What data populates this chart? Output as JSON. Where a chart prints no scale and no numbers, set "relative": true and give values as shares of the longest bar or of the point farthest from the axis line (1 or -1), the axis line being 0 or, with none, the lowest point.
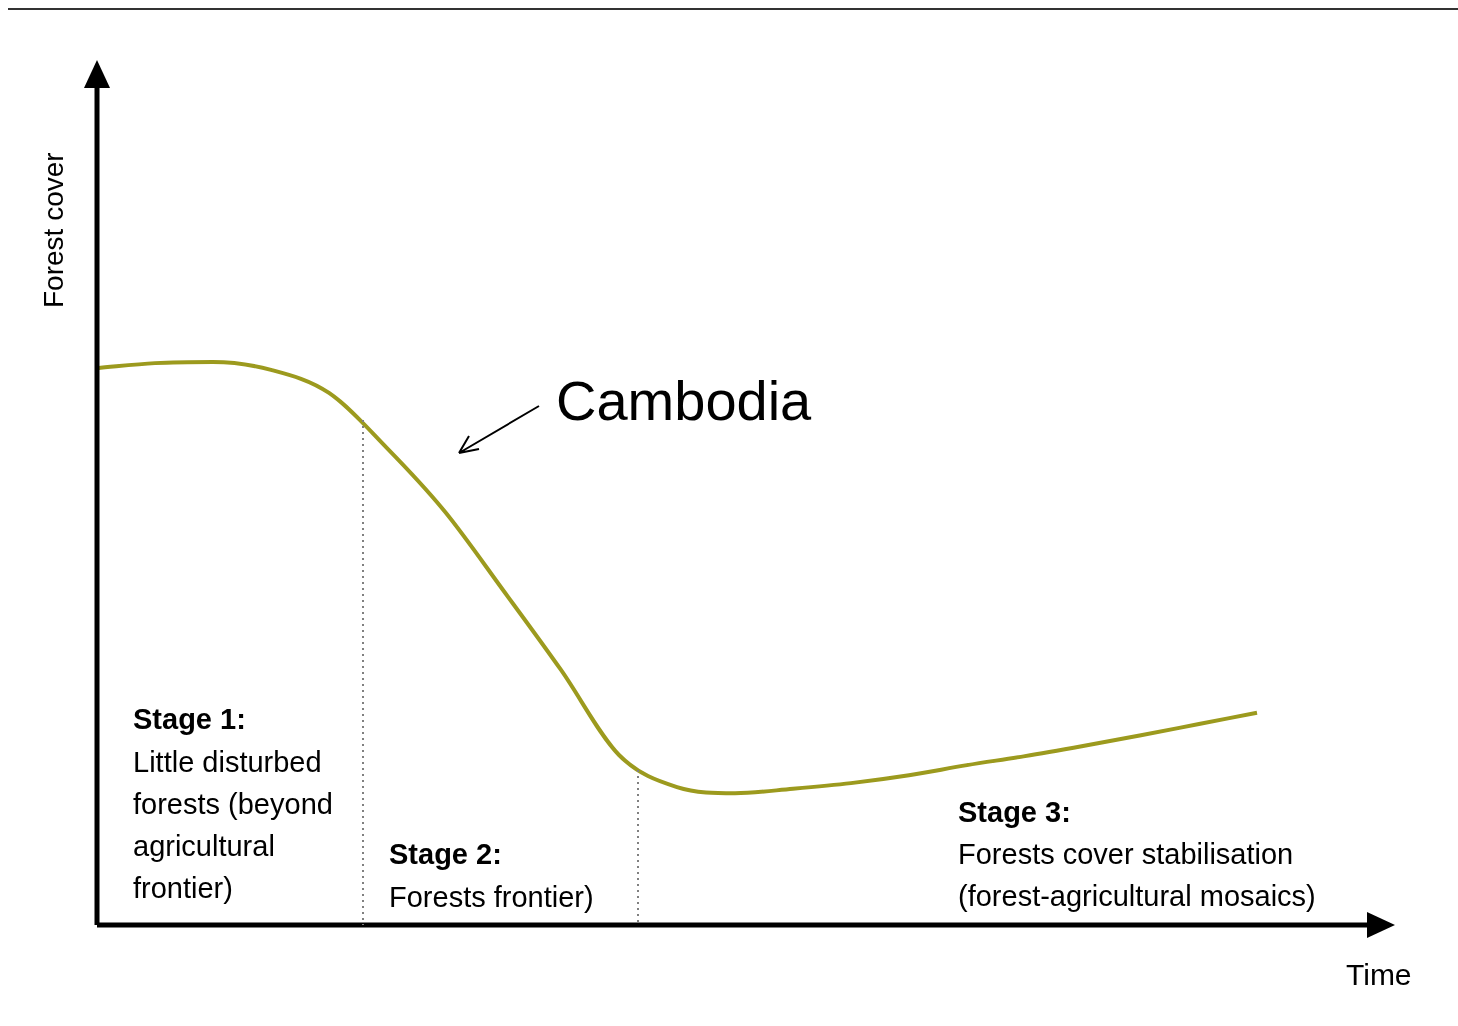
{
  "chart_data": {
    "type": "line",
    "relative": true,
    "xlabel": "Time",
    "ylabel": "Forest cover",
    "categories": [
      null,
      null,
      null,
      null,
      null,
      null,
      null,
      null,
      null,
      null,
      null,
      null,
      null,
      null,
      null,
      null,
      null,
      null,
      null,
      null,
      null,
      null,
      null
    ],
    "series": [
      {
        "color": "#9c9a1e",
        "values": [
          0.989,
          0.998,
          1.0,
          0.986,
          0.945,
          0.847,
          0.734,
          0.595,
          0.453,
          0.302,
          0.245,
          0.234,
          0.242,
          0.252,
          0.266,
          0.284,
          0.3,
          0.318,
          0.337,
          0.357,
          0.377,
          null,
          null
        ]
      }
    ],
    "annotations": [
      "Cambodia",
      "Stage 1:",
      "Little disturbed forests (beyond agricultural frontier)",
      "Stage 2:",
      "Forests frontier)",
      "Stage 3:",
      "Forests cover stabilisation (forest-agricultural mosaics)"
    ],
    "marker": "none",
    "line_style": "solid"
  }
}
